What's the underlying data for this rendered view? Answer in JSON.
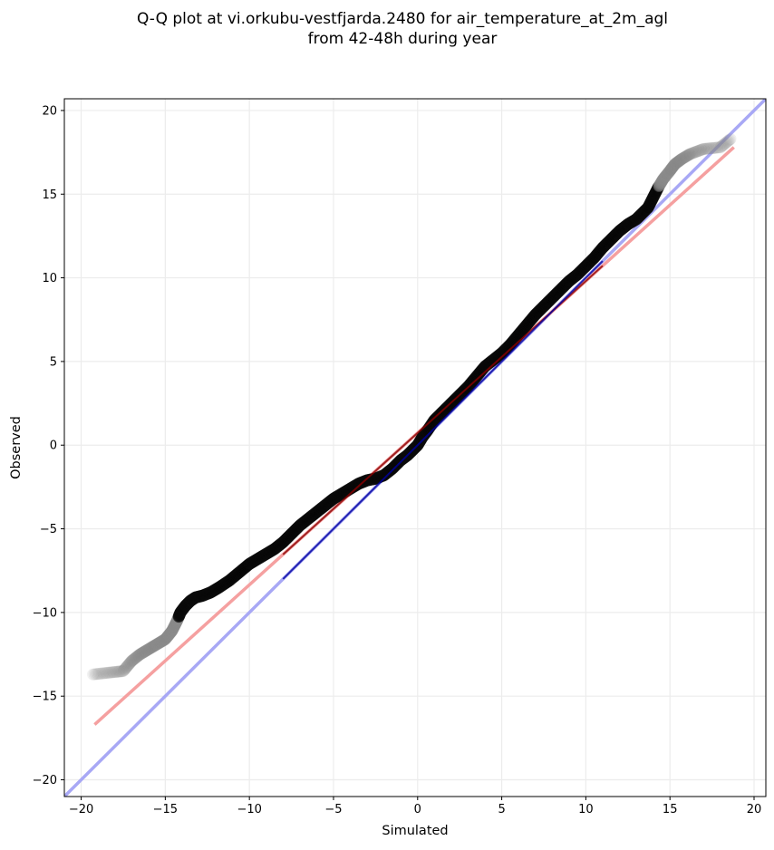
{
  "chart_data": {
    "type": "scatter",
    "title": [
      "Q-Q plot at vi.orkubu-vestfjarda.2480 for air_temperature_at_2m_agl",
      "from 42-48h during year"
    ],
    "xlabel": "Simulated",
    "ylabel": "Observed",
    "xlim": [
      -21,
      20.7
    ],
    "ylim": [
      -21,
      20.7
    ],
    "xticks": [
      -20,
      -15,
      -10,
      -5,
      0,
      5,
      10,
      15,
      20
    ],
    "yticks": [
      -20,
      -15,
      -10,
      -5,
      0,
      5,
      10,
      15,
      20
    ],
    "xtick_labels": [
      "−20",
      "−15",
      "−10",
      "−5",
      "0",
      "5",
      "10",
      "15",
      "20"
    ],
    "ytick_labels": [
      "−20",
      "−15",
      "−10",
      "−5",
      "0",
      "5",
      "10",
      "15",
      "20"
    ],
    "grid": true,
    "colors": {
      "points_dense": "#000000",
      "points_tail": "#bdbdbd",
      "fit_line": "#f5a0a0",
      "identity_line": "#a8a8f5",
      "inner_fit": "#8b0000",
      "inner_identity": "#0000a0"
    },
    "fit_line": {
      "x": [
        -19.2,
        18.8
      ],
      "y": [
        -16.7,
        17.8
      ]
    },
    "identity_line": {
      "x": [
        -21,
        20.7
      ],
      "y": [
        -21,
        20.7
      ]
    },
    "qq_points": {
      "x": [
        -19.3,
        -18.4,
        -17.5,
        -17.0,
        -16.5,
        -16.0,
        -15.5,
        -15.0,
        -14.6,
        -14.3,
        -14.1,
        -13.8,
        -13.5,
        -13.2,
        -12.8,
        -12.3,
        -11.8,
        -11.2,
        -10.6,
        -10.0,
        -9.5,
        -9.0,
        -8.5,
        -8.0,
        -7.5,
        -7.0,
        -6.5,
        -6.0,
        -5.5,
        -5.0,
        -4.5,
        -4.0,
        -3.5,
        -3.0,
        -2.5,
        -2.0,
        -1.5,
        -1.0,
        -0.6,
        -0.3,
        0.0,
        0.3,
        0.6,
        1.0,
        1.5,
        2.0,
        2.5,
        3.0,
        3.5,
        4.0,
        4.5,
        5.0,
        5.5,
        6.0,
        6.5,
        7.0,
        7.5,
        8.0,
        8.5,
        9.0,
        9.5,
        10.0,
        10.5,
        11.0,
        11.5,
        12.0,
        12.5,
        13.0,
        13.3,
        13.7,
        14.0,
        14.3,
        14.6,
        15.0,
        15.3,
        15.7,
        16.2,
        17.0,
        18.0,
        18.6
      ],
      "y": [
        -13.7,
        -13.6,
        -13.5,
        -12.9,
        -12.5,
        -12.2,
        -11.9,
        -11.6,
        -11.1,
        -10.5,
        -10.0,
        -9.6,
        -9.3,
        -9.1,
        -9.0,
        -8.8,
        -8.5,
        -8.1,
        -7.6,
        -7.1,
        -6.8,
        -6.5,
        -6.2,
        -5.8,
        -5.3,
        -4.8,
        -4.4,
        -4.0,
        -3.6,
        -3.2,
        -2.9,
        -2.6,
        -2.3,
        -2.1,
        -2.0,
        -1.8,
        -1.4,
        -0.9,
        -0.6,
        -0.3,
        0.0,
        0.5,
        0.9,
        1.5,
        2.0,
        2.5,
        3.0,
        3.5,
        4.1,
        4.7,
        5.1,
        5.5,
        6.0,
        6.6,
        7.2,
        7.8,
        8.3,
        8.8,
        9.3,
        9.8,
        10.2,
        10.7,
        11.2,
        11.8,
        12.3,
        12.8,
        13.2,
        13.5,
        13.8,
        14.2,
        14.8,
        15.4,
        15.9,
        16.4,
        16.8,
        17.1,
        17.4,
        17.7,
        17.8,
        18.3
      ]
    }
  }
}
